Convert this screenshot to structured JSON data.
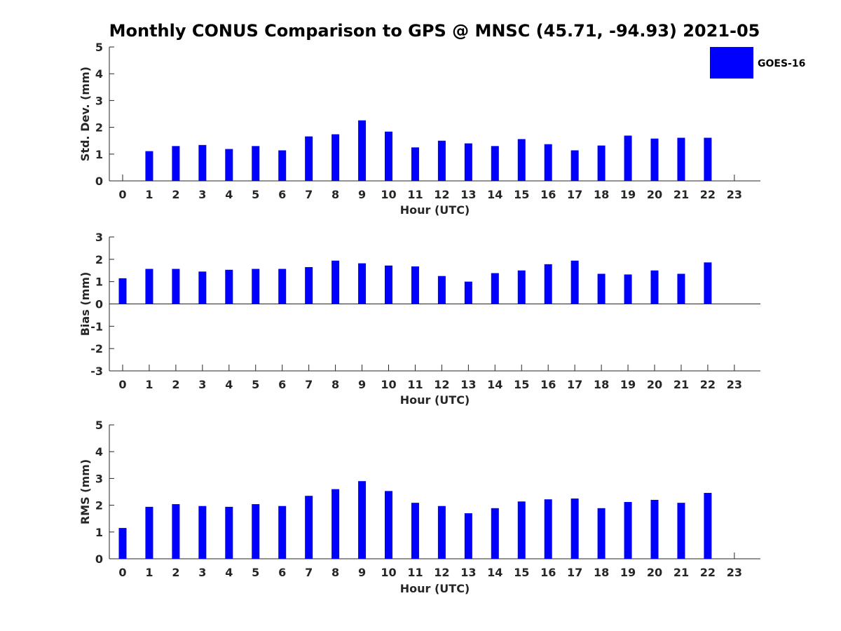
{
  "title": "Monthly CONUS Comparison to GPS @ MNSC (45.71, -94.93) 2021-05",
  "legend": {
    "label": "GOES-16",
    "color": "#0000ff"
  },
  "chart_data": [
    {
      "type": "bar",
      "xlabel": "Hour (UTC)",
      "ylabel": "Std. Dev. (mm)",
      "ylim": [
        0,
        5
      ],
      "yticks": [
        0,
        1,
        2,
        3,
        4,
        5
      ],
      "categories": [
        0,
        1,
        2,
        3,
        4,
        5,
        6,
        7,
        8,
        9,
        10,
        11,
        12,
        13,
        14,
        15,
        16,
        17,
        18,
        19,
        20,
        21,
        22,
        23
      ],
      "series": [
        {
          "name": "GOES-16",
          "values": [
            null,
            1.11,
            1.3,
            1.34,
            1.19,
            1.3,
            1.14,
            1.66,
            1.74,
            2.26,
            1.84,
            1.25,
            1.5,
            1.4,
            1.3,
            1.56,
            1.37,
            1.14,
            1.32,
            1.69,
            1.58,
            1.61,
            1.61,
            null
          ]
        }
      ]
    },
    {
      "type": "bar",
      "xlabel": "Hour (UTC)",
      "ylabel": "Bias (mm)",
      "ylim": [
        -3,
        3
      ],
      "yticks": [
        -3,
        -2,
        -1,
        0,
        1,
        2,
        3
      ],
      "categories": [
        0,
        1,
        2,
        3,
        4,
        5,
        6,
        7,
        8,
        9,
        10,
        11,
        12,
        13,
        14,
        15,
        16,
        17,
        18,
        19,
        20,
        21,
        22,
        23
      ],
      "series": [
        {
          "name": "GOES-16",
          "values": [
            1.15,
            1.57,
            1.57,
            1.45,
            1.53,
            1.57,
            1.57,
            1.65,
            1.94,
            1.82,
            1.72,
            1.68,
            1.25,
            1.0,
            1.38,
            1.5,
            1.78,
            1.94,
            1.35,
            1.32,
            1.5,
            1.35,
            1.86,
            null
          ]
        }
      ]
    },
    {
      "type": "bar",
      "xlabel": "Hour (UTC)",
      "ylabel": "RMS (mm)",
      "ylim": [
        0,
        5
      ],
      "yticks": [
        0,
        1,
        2,
        3,
        4,
        5
      ],
      "categories": [
        0,
        1,
        2,
        3,
        4,
        5,
        6,
        7,
        8,
        9,
        10,
        11,
        12,
        13,
        14,
        15,
        16,
        17,
        18,
        19,
        20,
        21,
        22,
        23
      ],
      "series": [
        {
          "name": "GOES-16",
          "values": [
            1.15,
            1.94,
            2.04,
            1.97,
            1.94,
            2.04,
            1.97,
            2.35,
            2.6,
            2.9,
            2.53,
            2.09,
            1.97,
            1.7,
            1.89,
            2.14,
            2.22,
            2.25,
            1.89,
            2.12,
            2.2,
            2.09,
            2.46,
            null
          ]
        }
      ]
    }
  ]
}
